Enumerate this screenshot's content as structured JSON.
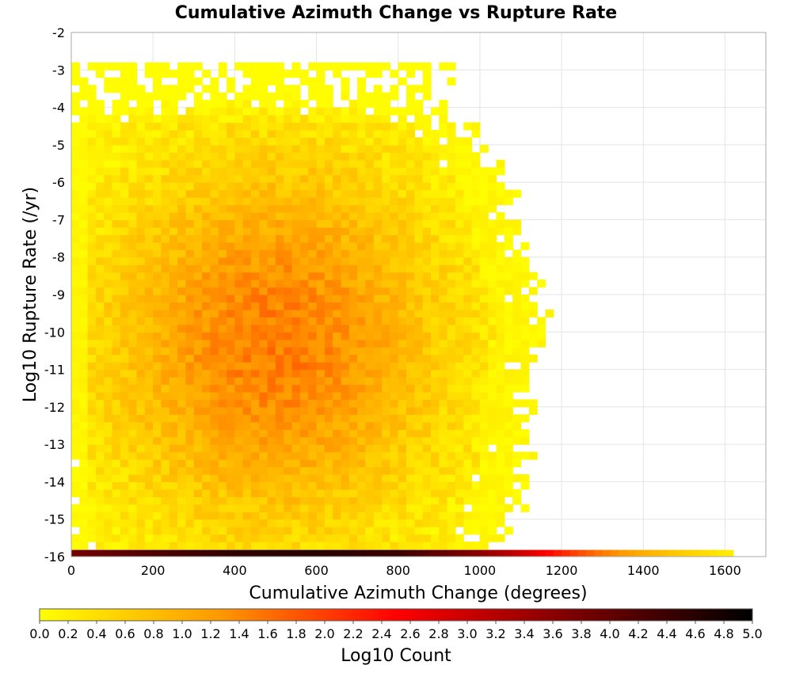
{
  "chart_data": {
    "type": "heatmap",
    "title": "Cumulative Azimuth Change vs Rupture Rate",
    "xlabel": "Cumulative Azimuth Change (degrees)",
    "ylabel": "Log10 Rupture Rate (/yr)",
    "colorbar_label": "Log10 Count",
    "xlim": [
      0,
      1700
    ],
    "ylim": [
      -16,
      -2
    ],
    "x_ticks": [
      "0",
      "200",
      "400",
      "600",
      "800",
      "1000",
      "1200",
      "1400",
      "1600"
    ],
    "y_ticks": [
      "-2",
      "-3",
      "-4",
      "-5",
      "-6",
      "-7",
      "-8",
      "-9",
      "-10",
      "-11",
      "-12",
      "-13",
      "-14",
      "-15",
      "-16"
    ],
    "colorbar_range": [
      0.0,
      5.0
    ],
    "colorbar_ticks": [
      "0.0",
      "0.2",
      "0.4",
      "0.6",
      "0.8",
      "1.0",
      "1.2",
      "1.4",
      "1.6",
      "1.8",
      "2.0",
      "2.2",
      "2.4",
      "2.6",
      "2.8",
      "3.0",
      "3.2",
      "3.4",
      "3.6",
      "3.8",
      "4.0",
      "4.2",
      "4.4",
      "4.6",
      "4.8",
      "5.0"
    ],
    "colormap": [
      "#ffff00",
      "#ff9a00",
      "#ff0000",
      "#7a0000",
      "#000000"
    ],
    "bin_width_x": 20,
    "bin_height_y": 0.2,
    "grid": true,
    "density_model": {
      "center_x": 500,
      "center_y": -10.3,
      "peak_log10_count": 1.5,
      "spread_x": 420,
      "spread_y": 5.0,
      "data_x_max_by_rate": [
        [
          -4,
          900
        ],
        [
          -6,
          1050
        ],
        [
          -8,
          1100
        ],
        [
          -10,
          1150
        ],
        [
          -12,
          1100
        ],
        [
          -14,
          1100
        ],
        [
          -15.5,
          1050
        ]
      ],
      "data_y_top": -3.0
    },
    "bottom_row": {
      "y": -16,
      "x_max": 1620,
      "values": [
        [
          0,
          3.8
        ],
        [
          200,
          4.2
        ],
        [
          400,
          4.5
        ],
        [
          600,
          4.6
        ],
        [
          800,
          4.4
        ],
        [
          1000,
          3.6
        ],
        [
          1100,
          3.0
        ],
        [
          1200,
          2.2
        ],
        [
          1300,
          1.5
        ],
        [
          1400,
          1.0
        ],
        [
          1500,
          0.6
        ],
        [
          1620,
          0.2
        ]
      ]
    }
  }
}
